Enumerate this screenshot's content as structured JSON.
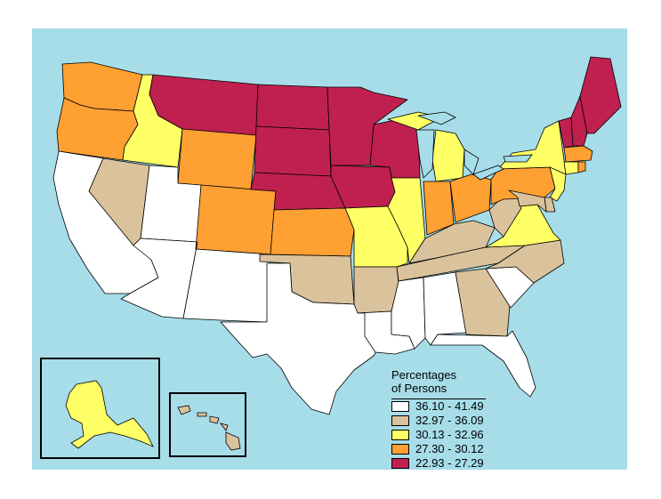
{
  "colors": {
    "ocean": "#a6dde9",
    "bin1": "#ffffff",
    "bin2": "#d9c29c",
    "bin3": "#ffff66",
    "bin4": "#ffa033",
    "bin5": "#bf2050",
    "border": "#000000"
  },
  "legend": {
    "title_line1": "Percentages",
    "title_line2": "of Persons",
    "items": [
      {
        "label": "36.10 - 41.49",
        "bin": "bin1"
      },
      {
        "label": "32.97 - 36.09",
        "bin": "bin2"
      },
      {
        "label": "30.13 - 32.96",
        "bin": "bin3"
      },
      {
        "label": "27.30 - 30.12",
        "bin": "bin4"
      },
      {
        "label": "22.93 - 27.29",
        "bin": "bin5"
      }
    ]
  },
  "states": [
    {
      "state": "WA",
      "bin": "bin4"
    },
    {
      "state": "OR",
      "bin": "bin4"
    },
    {
      "state": "CA",
      "bin": "bin1"
    },
    {
      "state": "ID",
      "bin": "bin3"
    },
    {
      "state": "NV",
      "bin": "bin2"
    },
    {
      "state": "MT",
      "bin": "bin5"
    },
    {
      "state": "WY",
      "bin": "bin4"
    },
    {
      "state": "UT",
      "bin": "bin1"
    },
    {
      "state": "AZ",
      "bin": "bin1"
    },
    {
      "state": "CO",
      "bin": "bin4"
    },
    {
      "state": "NM",
      "bin": "bin1"
    },
    {
      "state": "ND",
      "bin": "bin5"
    },
    {
      "state": "SD",
      "bin": "bin5"
    },
    {
      "state": "NE",
      "bin": "bin5"
    },
    {
      "state": "KS",
      "bin": "bin4"
    },
    {
      "state": "OK",
      "bin": "bin2"
    },
    {
      "state": "TX",
      "bin": "bin1"
    },
    {
      "state": "MN",
      "bin": "bin5"
    },
    {
      "state": "IA",
      "bin": "bin5"
    },
    {
      "state": "MO",
      "bin": "bin3"
    },
    {
      "state": "AR",
      "bin": "bin2"
    },
    {
      "state": "LA",
      "bin": "bin1"
    },
    {
      "state": "WI",
      "bin": "bin5"
    },
    {
      "state": "IL",
      "bin": "bin3"
    },
    {
      "state": "MI",
      "bin": "bin3"
    },
    {
      "state": "IN",
      "bin": "bin4"
    },
    {
      "state": "OH",
      "bin": "bin4"
    },
    {
      "state": "KY",
      "bin": "bin2"
    },
    {
      "state": "TN",
      "bin": "bin2"
    },
    {
      "state": "MS",
      "bin": "bin1"
    },
    {
      "state": "AL",
      "bin": "bin1"
    },
    {
      "state": "GA",
      "bin": "bin2"
    },
    {
      "state": "FL",
      "bin": "bin1"
    },
    {
      "state": "SC",
      "bin": "bin1"
    },
    {
      "state": "NC",
      "bin": "bin2"
    },
    {
      "state": "VA",
      "bin": "bin3"
    },
    {
      "state": "WV",
      "bin": "bin2"
    },
    {
      "state": "PA",
      "bin": "bin4"
    },
    {
      "state": "NY",
      "bin": "bin3"
    },
    {
      "state": "VT",
      "bin": "bin5"
    },
    {
      "state": "NH",
      "bin": "bin5"
    },
    {
      "state": "ME",
      "bin": "bin5"
    },
    {
      "state": "MA",
      "bin": "bin4"
    },
    {
      "state": "CT",
      "bin": "bin3"
    },
    {
      "state": "RI",
      "bin": "bin4"
    },
    {
      "state": "NJ",
      "bin": "bin3"
    },
    {
      "state": "DE",
      "bin": "bin2"
    },
    {
      "state": "MD",
      "bin": "bin2"
    },
    {
      "state": "AK",
      "bin": "bin3"
    },
    {
      "state": "HI",
      "bin": "bin2"
    }
  ]
}
